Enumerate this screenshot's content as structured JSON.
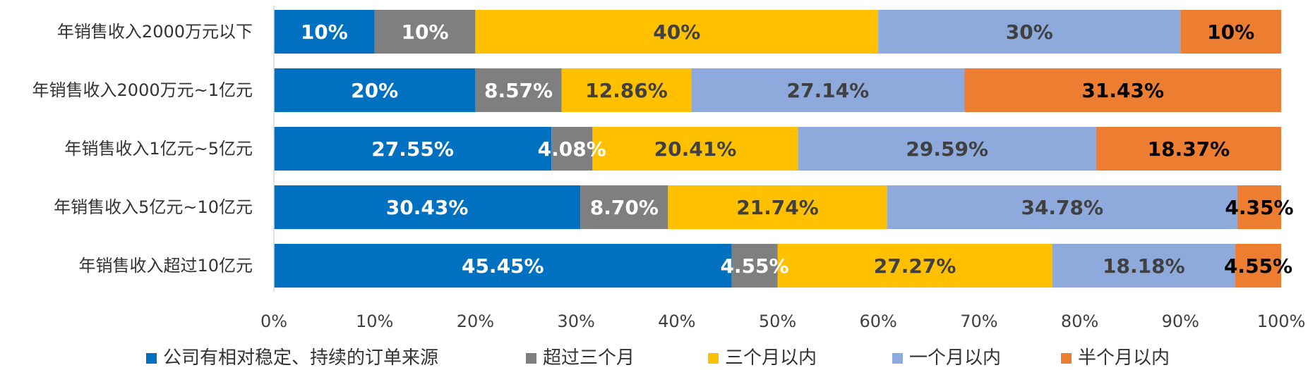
{
  "chart_data": {
    "type": "bar",
    "orientation": "horizontal",
    "stacked": "percent",
    "categories": [
      "年销售收入2000万元以下",
      "年销售收入2000万元~1亿元",
      "年销售收入1亿元~5亿元",
      "年销售收入5亿元~10亿元",
      "年销售收入超过10亿元"
    ],
    "series": [
      {
        "name": "公司有相对稳定、持续的订单来源",
        "color": "#0070C0",
        "values": [
          10,
          20,
          27.55,
          30.43,
          45.45
        ],
        "labels": [
          "10%",
          "20%",
          "27.55%",
          "30.43%",
          "45.45%"
        ]
      },
      {
        "name": "超过三个月",
        "color": "#7F7F7F",
        "values": [
          10,
          8.57,
          4.08,
          8.7,
          4.55
        ],
        "labels": [
          "10%",
          "8.57%",
          "4.08%",
          "8.70%",
          "4.55%"
        ]
      },
      {
        "name": "三个月以内",
        "color": "#FFC000",
        "values": [
          40,
          12.86,
          20.41,
          21.74,
          27.27
        ],
        "labels": [
          "40%",
          "12.86%",
          "20.41%",
          "21.74%",
          "27.27%"
        ]
      },
      {
        "name": "一个月以内",
        "color": "#8EA9DB",
        "values": [
          30,
          27.14,
          29.59,
          34.78,
          18.18
        ],
        "labels": [
          "30%",
          "27.14%",
          "29.59%",
          "34.78%",
          "18.18%"
        ]
      },
      {
        "name": "半个月以内",
        "color": "#ED7D31",
        "values": [
          10,
          31.43,
          18.37,
          4.35,
          4.55
        ],
        "labels": [
          "10%",
          "31.43%",
          "18.37%",
          "4.35%",
          "4.55%"
        ]
      }
    ],
    "xlim": [
      0,
      100
    ],
    "xticks": [
      "0%",
      "10%",
      "20%",
      "30%",
      "40%",
      "50%",
      "60%",
      "70%",
      "80%",
      "90%",
      "100%"
    ],
    "legend_position": "bottom",
    "grid": false,
    "label_colors": {
      "on_dark": "#FFFFFF",
      "on_light": "#404040",
      "on_orange": "#000000"
    }
  }
}
